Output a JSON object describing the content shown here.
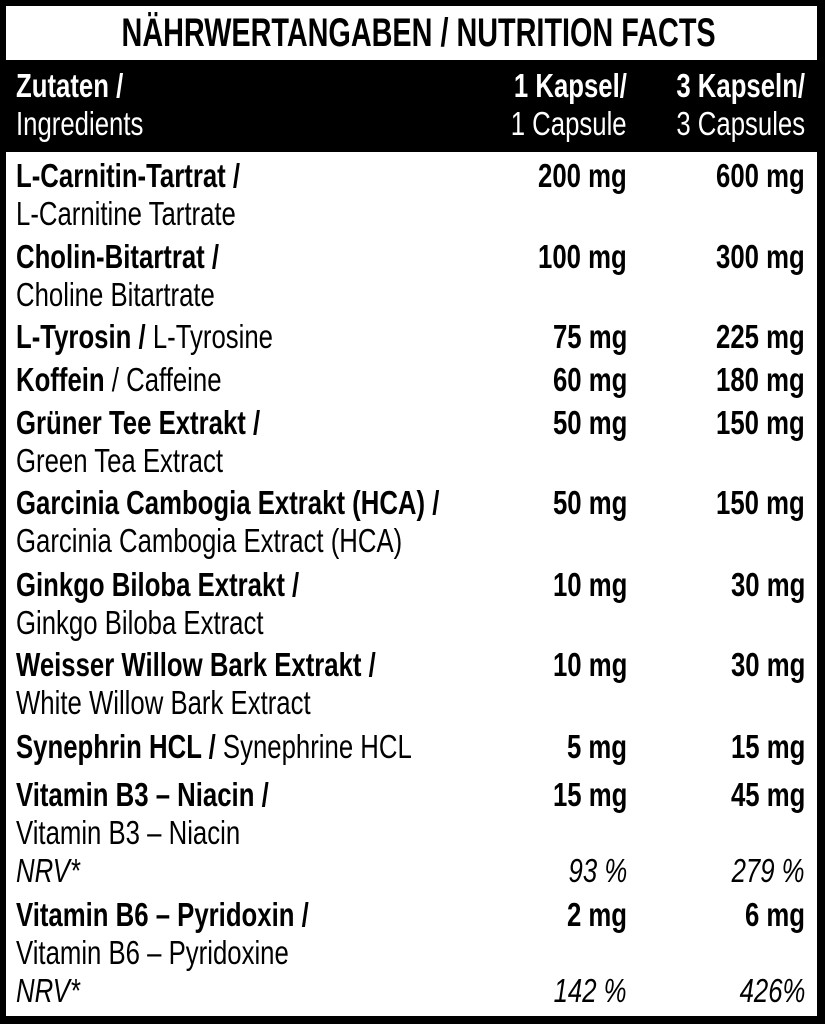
{
  "title": "NÄHRWERTANGABEN / NUTRITION FACTS",
  "header": {
    "col0_de": "Zutaten /",
    "col0_en": "Ingredients",
    "col1_de": "1 Kapsel/",
    "col1_en": "1 Capsule",
    "col2_de": "3 Kapseln/",
    "col2_en": "3 Capsules"
  },
  "ingredients": [
    {
      "de": "L-Carnitin-Tartrat /",
      "en": "L-Carnitine Tartrate",
      "per_1": "200 mg",
      "per_3": "600 mg"
    },
    {
      "de": "Cholin-Bitartrat /",
      "en": "Choline Bitartrate",
      "per_1": "100 mg",
      "per_3": "300 mg"
    },
    {
      "de": "L-Tyrosin /",
      "en": "L-Tyrosine",
      "per_1": "75 mg",
      "per_3": "225 mg"
    },
    {
      "de": "Koffein",
      "en": "/ Caffeine",
      "per_1": "60 mg",
      "per_3": "180 mg"
    },
    {
      "de": "Grüner Tee Extrakt /",
      "en": "Green Tea Extract",
      "per_1": "50 mg",
      "per_3": "150 mg"
    },
    {
      "de": "Garcinia Cambogia Extrakt (HCA) /",
      "en": "Garcinia Cambogia Extract (HCA)",
      "per_1": "50 mg",
      "per_3": "150 mg"
    },
    {
      "de": "Ginkgo Biloba Extrakt /",
      "en": "Ginkgo Biloba Extract",
      "per_1": "10 mg",
      "per_3": "30 mg"
    },
    {
      "de": "Weisser Willow Bark Extrakt /",
      "en": "White Willow Bark Extract",
      "per_1": "10 mg",
      "per_3": "30 mg"
    },
    {
      "de": "Synephrin HCL /",
      "en": "Synephrine HCL",
      "per_1": "5 mg",
      "per_3": "15 mg"
    },
    {
      "de": "Vitamin B3 – Niacin /",
      "en": "Vitamin B3 – Niacin",
      "per_1": "15 mg",
      "per_3": "45 mg",
      "nrv_label": "NRV*",
      "nrv_1": "93 %",
      "nrv_3": "279 %"
    },
    {
      "de": "Vitamin B6 – Pyridoxin /",
      "en": "Vitamin B6 – Pyridoxine",
      "per_1": "2 mg",
      "per_3": "6 mg",
      "nrv_label": "NRV*",
      "nrv_1": "142 %",
      "nrv_3": "426%"
    }
  ]
}
